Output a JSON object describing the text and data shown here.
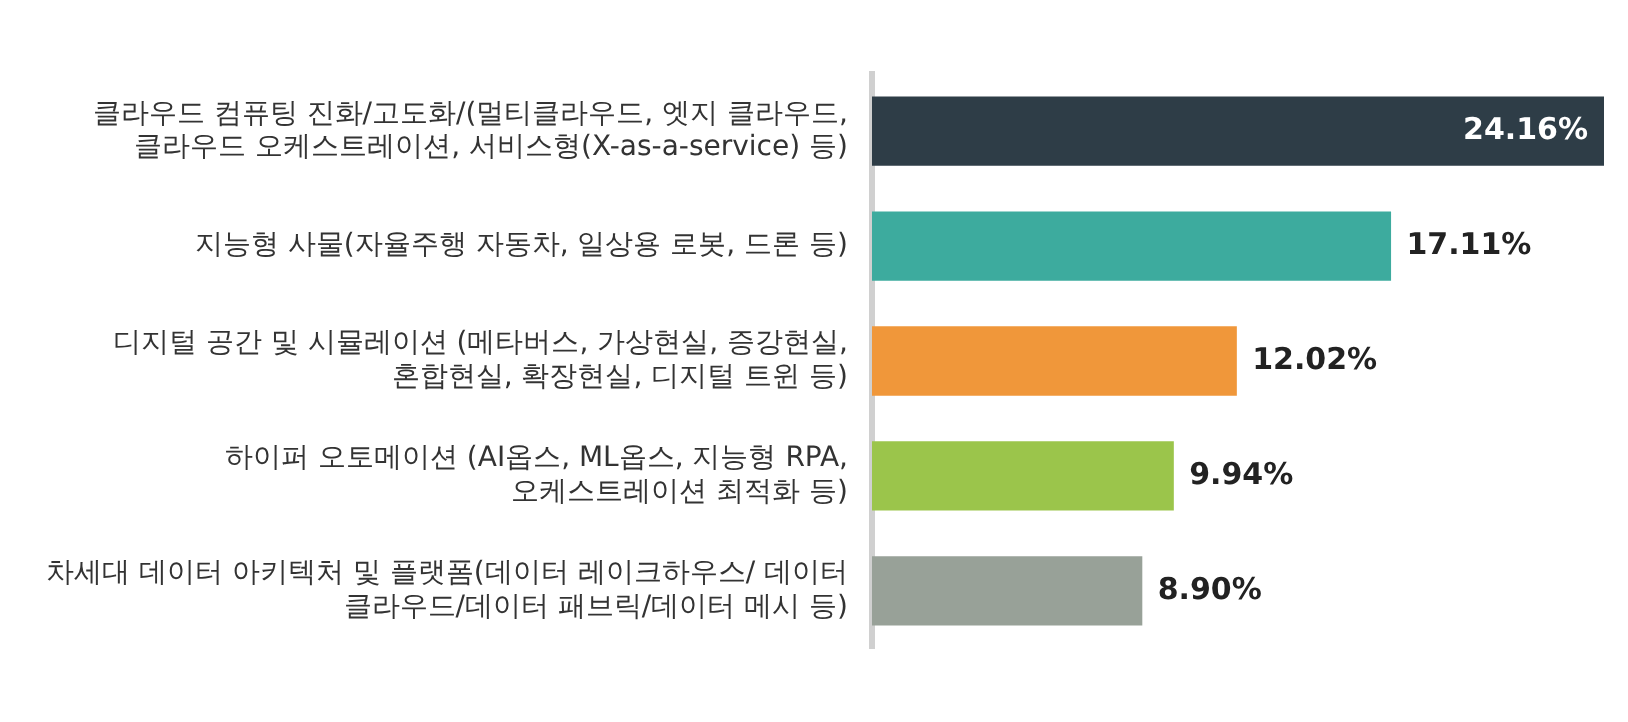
{
  "chart_data": {
    "type": "bar",
    "orientation": "horizontal",
    "categories": [
      "클라우드 컴퓨팅 진화/고도화/(멀티클라우드, 엣지 클라우드, 클라우드 오케스트레이션, 서비스형(X-as-a-service) 등)",
      "지능형 사물(자율주행 자동차, 일상용 로봇, 드론 등)",
      "디지털 공간 및 시뮬레이션 (메타버스, 가상현실, 증강현실, 혼합현실, 확장현실, 디지털 트윈 등)",
      "하이퍼 오토메이션 (AI옵스, ML옵스, 지능형 RPA, 오케스트레이션 최적화 등)",
      "차세대 데이터 아키텍처 및 플랫폼(데이터 레이크하우스/ 데이터 클라우드/데이터 패브릭/데이터 메시 등)"
    ],
    "values": [
      24.16,
      17.11,
      12.02,
      9.94,
      8.9
    ],
    "colors": [
      "#2e3d47",
      "#3dab9e",
      "#f0973a",
      "#9bc54b",
      "#98a198"
    ],
    "value_labels": [
      "24.16%",
      "17.11%",
      "12.02%",
      "9.94%",
      "8.90%"
    ]
  }
}
